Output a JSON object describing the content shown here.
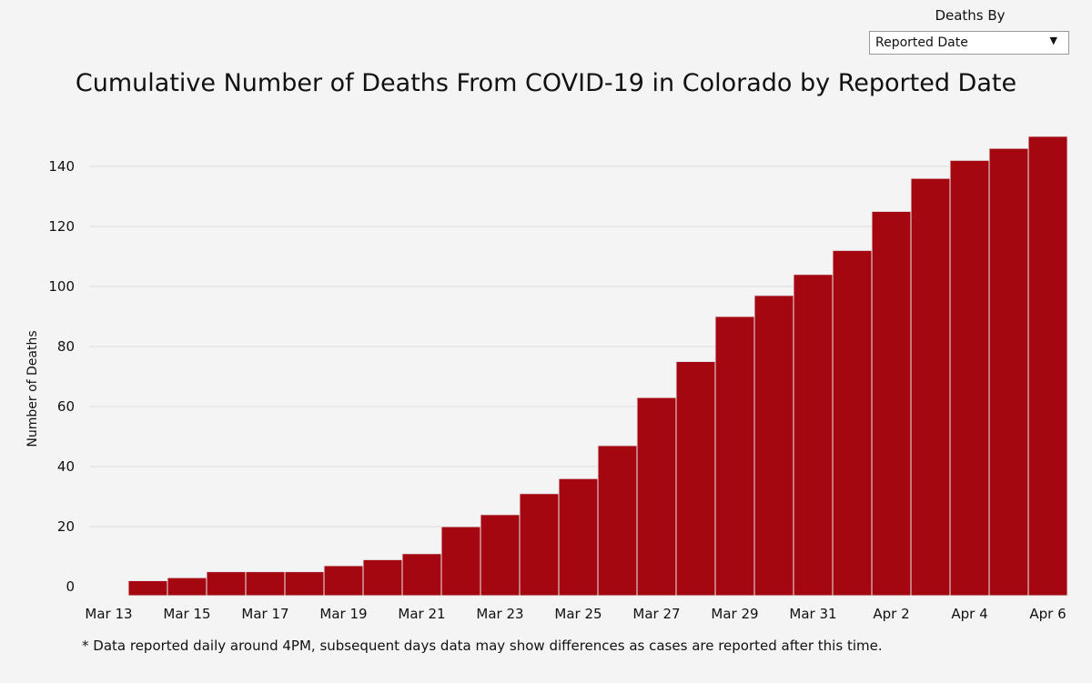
{
  "filter": {
    "label": "Deaths By",
    "selected": "Reported Date"
  },
  "chart_data": {
    "type": "bar",
    "title": "Cumulative Number of Deaths From COVID-19 in Colorado by Reported Date",
    "xlabel": "",
    "ylabel": "Number of Deaths",
    "ylim": [
      -3,
      153
    ],
    "yticks": [
      0,
      20,
      40,
      60,
      80,
      100,
      120,
      140
    ],
    "categories": [
      "Mar 13",
      "Mar 14",
      "Mar 15",
      "Mar 16",
      "Mar 17",
      "Mar 18",
      "Mar 19",
      "Mar 20",
      "Mar 21",
      "Mar 22",
      "Mar 23",
      "Mar 24",
      "Mar 25",
      "Mar 26",
      "Mar 27",
      "Mar 28",
      "Mar 29",
      "Mar 30",
      "Mar 31",
      "Apr 1",
      "Apr 2",
      "Apr 3",
      "Apr 4",
      "Apr 5",
      "Apr 6"
    ],
    "xtick_labels": [
      "Mar 13",
      "Mar 15",
      "Mar 17",
      "Mar 19",
      "Mar 21",
      "Mar 23",
      "Mar 25",
      "Mar 27",
      "Mar 29",
      "Mar 31",
      "Apr 2",
      "Apr 4",
      "Apr 6"
    ],
    "values": [
      null,
      2,
      3,
      5,
      5,
      5,
      7,
      9,
      11,
      20,
      24,
      31,
      36,
      47,
      63,
      75,
      90,
      97,
      104,
      112,
      125,
      136,
      142,
      146,
      150
    ],
    "color": "#a50711",
    "grid": true
  },
  "footnote": "* Data reported daily around 4PM, subsequent days data may show differences as cases are reported after this time."
}
